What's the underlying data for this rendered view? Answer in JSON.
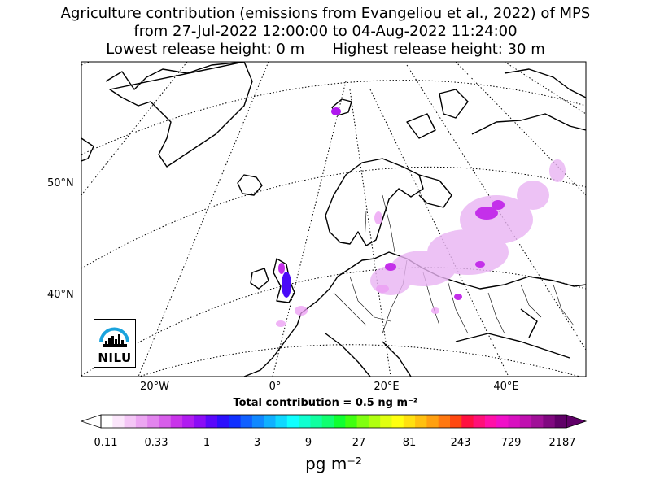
{
  "title": {
    "line1": "Agriculture contribution (emissions from Evangeliou et al., 2022) of MPS",
    "line2": "from 27-Jul-2022 12:00:00 to 04-Aug-2022 11:24:00",
    "line3": "Lowest release height: 0 m      Highest release height: 30 m"
  },
  "map": {
    "lat_labels": [
      "50°N",
      "40°N"
    ],
    "lon_labels": [
      "20°W",
      "0°",
      "20°E",
      "40°E"
    ],
    "logo_text": "NILU",
    "accent_color": "#1aa3dd"
  },
  "summary": {
    "total_label": "Total contribution = 0.5 ng m⁻²"
  },
  "colorbar": {
    "ticks": [
      "0.11",
      "0.33",
      "1",
      "3",
      "9",
      "27",
      "81",
      "243",
      "729",
      "2187"
    ],
    "unit": "pg m⁻²",
    "colors": [
      "#ffffff",
      "#fbe6fb",
      "#f4c6f6",
      "#eca6f2",
      "#e284ee",
      "#d75eea",
      "#c934ea",
      "#b01cf0",
      "#8b0cf6",
      "#5a08fb",
      "#2c10fd",
      "#1030ff",
      "#1060ff",
      "#1088ff",
      "#10b0ff",
      "#10d8ff",
      "#10ffff",
      "#10ffd0",
      "#10ffa0",
      "#10ff70",
      "#10ff30",
      "#40ff10",
      "#80ff10",
      "#b0ff10",
      "#e0ff10",
      "#ffff10",
      "#ffe010",
      "#ffc010",
      "#ffa010",
      "#ff7810",
      "#ff4810",
      "#ff1040",
      "#ff1078",
      "#ff10a8",
      "#f010c8",
      "#d810c0",
      "#c010b0",
      "#a01098",
      "#800880",
      "#600068"
    ]
  }
}
